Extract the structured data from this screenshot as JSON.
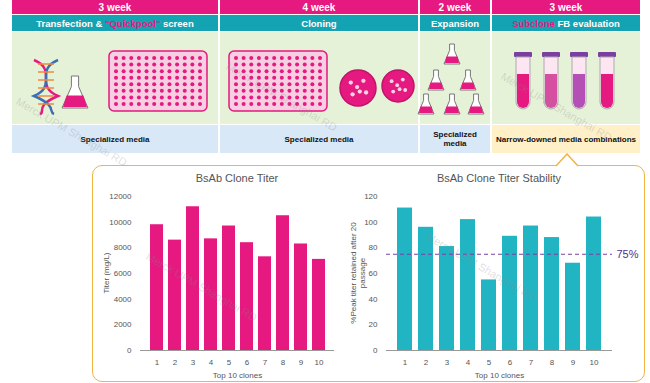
{
  "watermark": "Merck UPM Shanghai RD",
  "workflow": {
    "stages": [
      {
        "duration": "3 week",
        "title": [
          {
            "text": "Transfection & "
          },
          {
            "text": "\"Quickpool\"",
            "highlight": true
          },
          {
            "text": " screen"
          }
        ],
        "media": "Specialized media"
      },
      {
        "duration": "4 week",
        "title": [
          {
            "text": "Cloning"
          }
        ],
        "media": "Specialized media"
      },
      {
        "duration": "2 week",
        "title": [
          {
            "text": "Expansion"
          }
        ],
        "media": "Specialized media"
      },
      {
        "duration": "3 week",
        "title": [
          {
            "text": "Subclone",
            "highlight": true
          },
          {
            "text": " FB evaluation"
          }
        ],
        "media": "Narrow-downed media combinations"
      }
    ]
  },
  "chart_data": [
    {
      "type": "bar",
      "title": "BsAb Clone Titer",
      "x_label": "Top 10 clones",
      "y_label": "Titer (mg/L)",
      "categories": [
        "1",
        "2",
        "3",
        "4",
        "5",
        "6",
        "7",
        "8",
        "9",
        "10"
      ],
      "values": [
        9800,
        8600,
        11200,
        8700,
        9700,
        8400,
        7300,
        10500,
        8300,
        7100
      ],
      "color": "#e5197f",
      "ylim": [
        0,
        12000
      ],
      "yticks": [
        0,
        2000,
        4000,
        6000,
        8000,
        10000,
        12000
      ],
      "grid": false
    },
    {
      "type": "bar",
      "title": "BsAb Clone Titer Stability",
      "x_label": "Top 10 clones",
      "y_label": "%Peak titer retained after 20 passage",
      "categories": [
        "1",
        "2",
        "3",
        "4",
        "5",
        "6",
        "7",
        "8",
        "9",
        "10"
      ],
      "values": [
        111,
        96,
        81,
        102,
        55,
        89,
        97,
        88,
        68,
        104
      ],
      "color": "#21b5c4",
      "ylim": [
        0,
        120
      ],
      "yticks": [
        0,
        20,
        40,
        60,
        80,
        100,
        120
      ],
      "grid": false,
      "annotations": [
        {
          "y": 75,
          "label": "75%"
        }
      ]
    }
  ]
}
